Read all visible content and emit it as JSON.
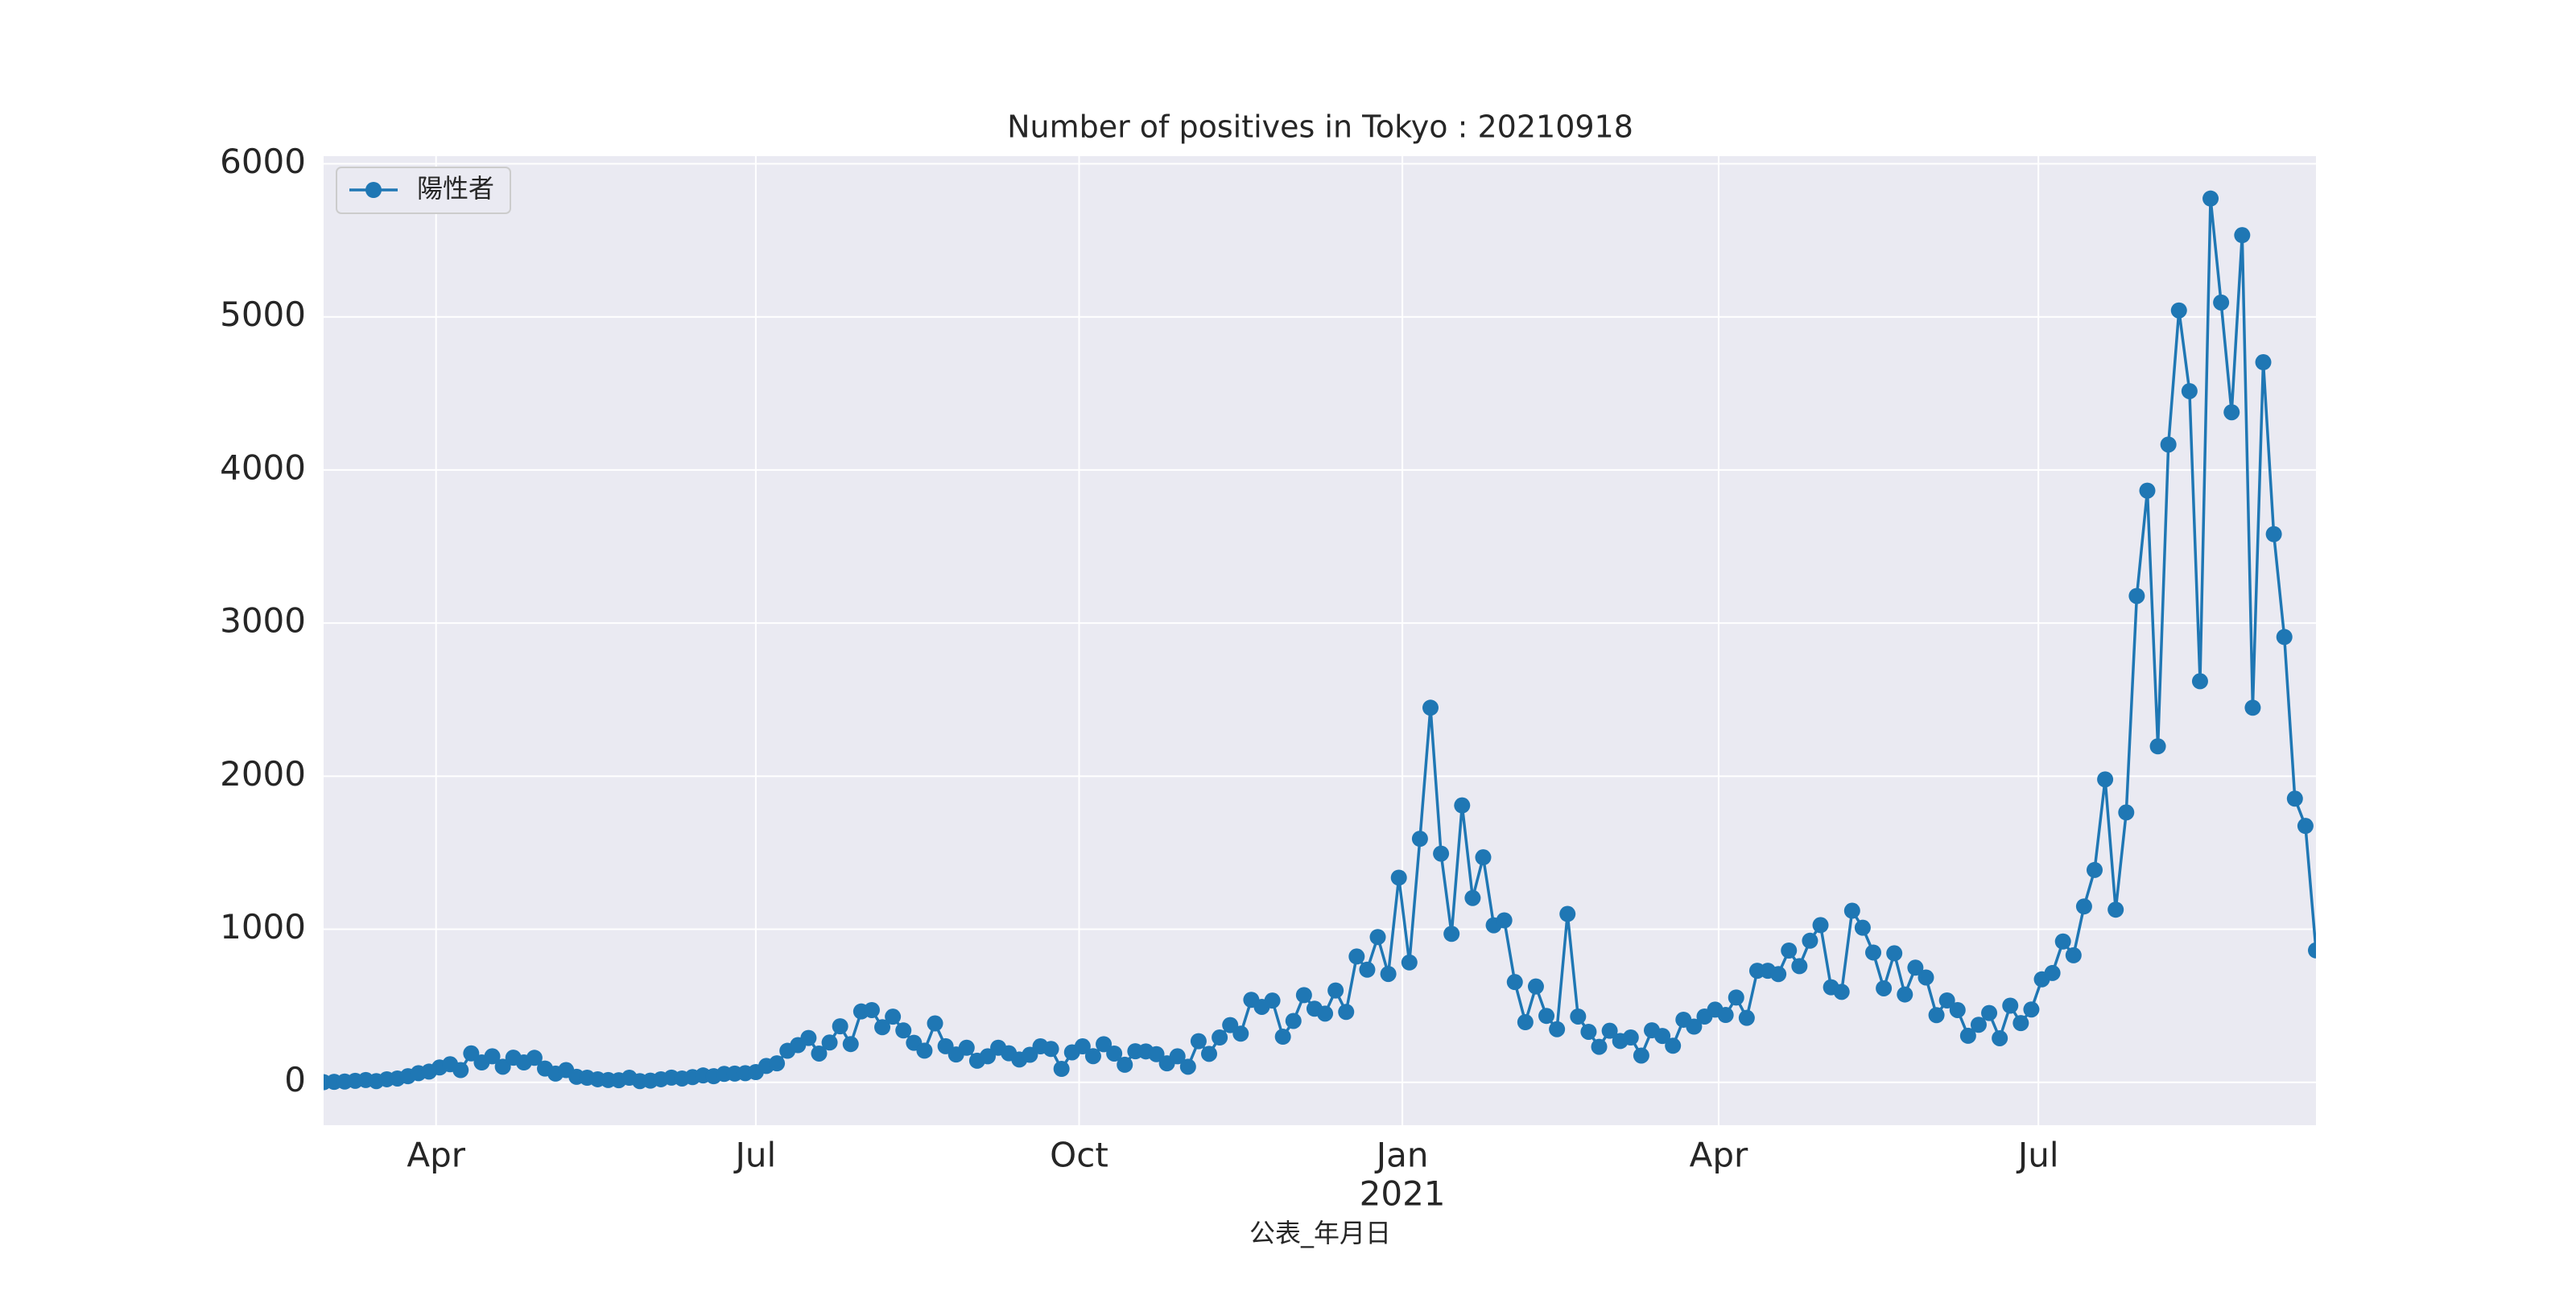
{
  "chart_data": {
    "type": "line",
    "title": "Number of positives in Tokyo : 20210918",
    "xlabel": "公表_年月日",
    "x_secondary_labels": [
      {
        "value": 275,
        "label": "2021"
      }
    ],
    "legend": "upper left",
    "grid": true,
    "xlim": [
      -32,
      535
    ],
    "xticks": [
      {
        "value": 0,
        "label": "Apr"
      },
      {
        "value": 91,
        "label": "Jul"
      },
      {
        "value": 183,
        "label": "Oct"
      },
      {
        "value": 275,
        "label": "Jan"
      },
      {
        "value": 365,
        "label": "Apr"
      },
      {
        "value": 456,
        "label": "Jul"
      }
    ],
    "ylim": [
      -280,
      6050
    ],
    "yticks": [
      0,
      1000,
      2000,
      3000,
      4000,
      5000,
      6000
    ],
    "series": [
      {
        "name": "陽性者",
        "color": "#1f77b4",
        "x": [
          -32,
          -29,
          -26,
          -23,
          -20,
          -17,
          -14,
          -11,
          -8,
          -5,
          -2,
          1,
          4,
          7,
          10,
          13,
          16,
          19,
          22,
          25,
          28,
          31,
          34,
          37,
          40,
          43,
          46,
          49,
          52,
          55,
          58,
          61,
          64,
          67,
          70,
          73,
          76,
          79,
          82,
          85,
          88,
          91,
          94,
          97,
          100,
          103,
          106,
          109,
          112,
          115,
          118,
          121,
          124,
          127,
          130,
          133,
          136,
          139,
          142,
          145,
          148,
          151,
          154,
          157,
          160,
          163,
          166,
          169,
          172,
          175,
          178,
          181,
          184,
          187,
          190,
          193,
          196,
          199,
          202,
          205,
          208,
          211,
          214,
          217,
          220,
          223,
          226,
          229,
          232,
          235,
          238,
          241,
          244,
          247,
          250,
          253,
          256,
          259,
          262,
          265,
          268,
          271,
          274,
          277,
          280,
          283,
          286,
          289,
          292,
          295,
          298,
          301,
          304,
          307,
          310,
          313,
          316,
          319,
          322,
          325,
          328,
          331,
          334,
          337,
          340,
          343,
          346,
          349,
          352,
          355,
          358,
          361,
          364,
          367,
          370,
          373,
          376,
          379,
          382,
          385,
          388,
          391,
          394,
          397,
          400,
          403,
          406,
          409,
          412,
          415,
          418,
          421,
          424,
          427,
          430,
          433,
          436,
          439,
          442,
          445,
          448,
          451,
          454,
          457,
          460,
          463,
          466,
          469,
          472,
          475,
          478,
          481,
          484,
          487,
          490,
          493,
          496,
          499,
          502,
          505,
          508,
          511,
          514,
          517,
          520,
          523,
          526,
          529,
          532,
          535
        ],
        "values": [
          1,
          3,
          5,
          10,
          15,
          8,
          20,
          25,
          40,
          60,
          70,
          97,
          118,
          80,
          189,
          130,
          170,
          102,
          161,
          130,
          160,
          90,
          57,
          80,
          36,
          30,
          20,
          15,
          14,
          30,
          8,
          11,
          20,
          31,
          25,
          34,
          45,
          40,
          55,
          57,
          60,
          67,
          107,
          124,
          206,
          243,
          290,
          188,
          260,
          366,
          250,
          463,
          472,
          360,
          429,
          339,
          258,
          207,
          385,
          236,
          182,
          226,
          141,
          170,
          226,
          190,
          149,
          180,
          235,
          218,
          88,
          196,
          235,
          171,
          249,
          188,
          115,
          203,
          202,
          184,
          124,
          170,
          102,
          269,
          186,
          293,
          374,
          318,
          539,
          493,
          534,
          298,
          401,
          570,
          481,
          449,
          600,
          460,
          822,
          736,
          949,
          708,
          1337,
          783,
          1591,
          2447,
          1494,
          970,
          1809,
          1204,
          1470,
          1026,
          1058,
          655,
          393,
          626,
          434,
          347,
          1100,
          430,
          330,
          232,
          337,
          270,
          293,
          175,
          340,
          303,
          239,
          409,
          364,
          430,
          475,
          440,
          554,
          421,
          729,
          729,
          707,
          861,
          759,
          925,
          1027,
          621,
          591,
          1121,
          1010,
          848,
          614,
          843,
          574,
          749,
          685,
          439,
          535,
          472,
          304,
          376,
          453,
          288,
          501,
          387,
          476,
          673,
          714,
          920,
          830,
          1149,
          1387,
          1979,
          1128,
          1763,
          3177,
          3865,
          2195,
          4166,
          5042,
          4515,
          2620,
          5773,
          5094,
          4377,
          5534,
          2447,
          4704,
          3581,
          2909,
          1853,
          1675,
          862
        ]
      }
    ]
  }
}
